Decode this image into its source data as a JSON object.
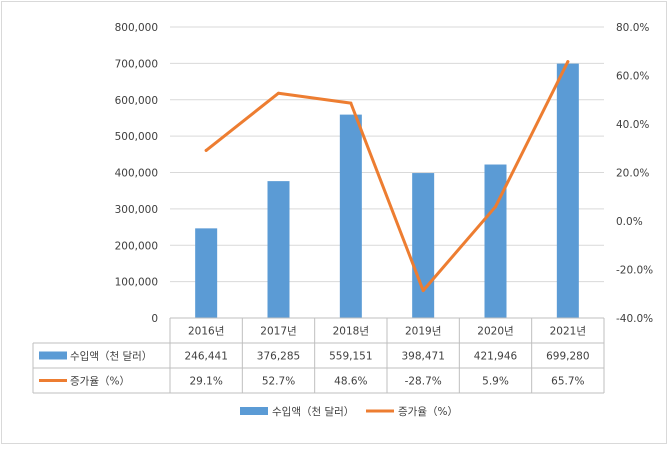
{
  "chart_data": {
    "type": "bar+line",
    "categories": [
      "2016년",
      "2017년",
      "2018년",
      "2019년",
      "2020년",
      "2021년"
    ],
    "series": [
      {
        "name": "수입액（천 달러）",
        "type": "bar",
        "axis": "left",
        "color": "#5B9BD5",
        "values": [
          246441,
          376285,
          559151,
          398471,
          421946,
          699280
        ],
        "labels": [
          "246,441",
          "376,285",
          "559,151",
          "398,471",
          "421,946",
          "699,280"
        ]
      },
      {
        "name": "증가율（%）",
        "type": "line",
        "axis": "right",
        "color": "#ED7D31",
        "values": [
          29.1,
          52.7,
          48.6,
          -28.7,
          5.9,
          65.7
        ],
        "labels": [
          "29.1%",
          "52.7%",
          "48.6%",
          "-28.7%",
          "5.9%",
          "65.7%"
        ]
      }
    ],
    "left_axis": {
      "min": 0,
      "max": 800000,
      "step": 100000,
      "tick_labels": [
        "0",
        "100,000",
        "200,000",
        "300,000",
        "400,000",
        "500,000",
        "600,000",
        "700,000",
        "800,000"
      ]
    },
    "right_axis": {
      "min": -40,
      "max": 80,
      "step": 20,
      "tick_labels": [
        "-40.0%",
        "-20.0%",
        "0.0%",
        "20.0%",
        "40.0%",
        "60.0%",
        "80.0%"
      ]
    },
    "grid": true,
    "data_table": true,
    "legend_position": "bottom"
  }
}
